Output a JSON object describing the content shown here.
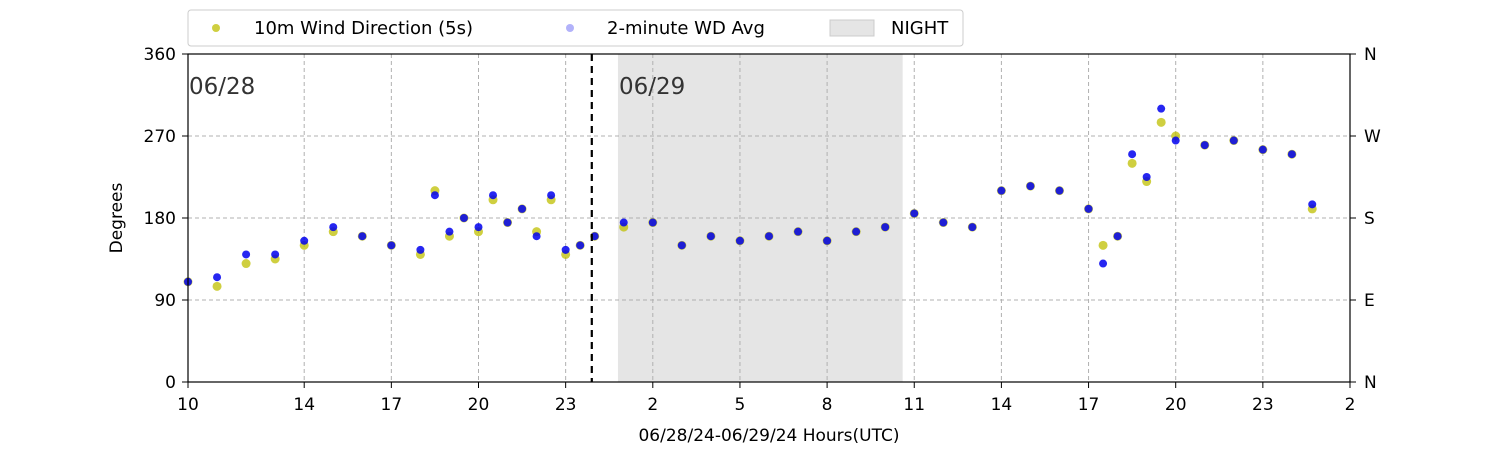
{
  "chart_data": {
    "type": "scatter",
    "xlabel": "06/28/24-06/29/24  Hours(UTC)",
    "ylabel": "Degrees",
    "ylim": [
      0,
      360
    ],
    "yticks": [
      0,
      90,
      180,
      270,
      360
    ],
    "right_ytick_labels": [
      "N",
      "E",
      "S",
      "W",
      "N"
    ],
    "x_start_hour": 10,
    "x_end_hour": 50,
    "xtick_hours": [
      10,
      14,
      17,
      20,
      23,
      26,
      29,
      32,
      35,
      38,
      41,
      44,
      47,
      50
    ],
    "xtick_labels": [
      "10",
      "14",
      "17",
      "20",
      "23",
      "2",
      "5",
      "8",
      "11",
      "14",
      "17",
      "20",
      "23",
      "2"
    ],
    "grid": true,
    "legend_position": "top-center-above",
    "day_labels": [
      {
        "text": "06/28",
        "hour": 10
      },
      {
        "text": "06/29",
        "hour": 24.8
      }
    ],
    "day_boundary_hour": 23.9,
    "night": {
      "label": "NIGHT",
      "start_hour": 24.8,
      "end_hour": 34.6
    },
    "series": [
      {
        "name": "10m Wind Direction (5s)",
        "color": "#bfbf00",
        "points": [
          [
            10,
            110
          ],
          [
            11,
            105
          ],
          [
            12,
            130
          ],
          [
            13,
            135
          ],
          [
            14,
            150
          ],
          [
            15,
            165
          ],
          [
            16,
            160
          ],
          [
            17,
            150
          ],
          [
            18,
            140
          ],
          [
            18.5,
            210
          ],
          [
            19,
            160
          ],
          [
            19.5,
            180
          ],
          [
            20,
            165
          ],
          [
            20.5,
            200
          ],
          [
            21,
            175
          ],
          [
            21.5,
            190
          ],
          [
            22,
            165
          ],
          [
            22.5,
            200
          ],
          [
            23,
            140
          ],
          [
            23.5,
            150
          ],
          [
            24,
            160
          ],
          [
            25,
            170
          ],
          [
            26,
            175
          ],
          [
            27,
            150
          ],
          [
            28,
            160
          ],
          [
            29,
            155
          ],
          [
            30,
            160
          ],
          [
            31,
            165
          ],
          [
            32,
            155
          ],
          [
            33,
            165
          ],
          [
            34,
            170
          ],
          [
            35,
            185
          ],
          [
            36,
            175
          ],
          [
            37,
            170
          ],
          [
            38,
            210
          ],
          [
            39,
            215
          ],
          [
            40,
            210
          ],
          [
            41,
            190
          ],
          [
            41.5,
            150
          ],
          [
            42,
            160
          ],
          [
            42.5,
            240
          ],
          [
            43,
            220
          ],
          [
            43.5,
            285
          ],
          [
            44,
            270
          ],
          [
            45,
            260
          ],
          [
            46,
            265
          ],
          [
            47,
            255
          ],
          [
            48,
            250
          ],
          [
            48.7,
            190
          ]
        ]
      },
      {
        "name": "2-minute WD Avg",
        "color": "#0000ee",
        "points": [
          [
            10,
            110
          ],
          [
            11,
            115
          ],
          [
            12,
            140
          ],
          [
            13,
            140
          ],
          [
            14,
            155
          ],
          [
            15,
            170
          ],
          [
            16,
            160
          ],
          [
            17,
            150
          ],
          [
            18,
            145
          ],
          [
            18.5,
            205
          ],
          [
            19,
            165
          ],
          [
            19.5,
            180
          ],
          [
            20,
            170
          ],
          [
            20.5,
            205
          ],
          [
            21,
            175
          ],
          [
            21.5,
            190
          ],
          [
            22,
            160
          ],
          [
            22.5,
            205
          ],
          [
            23,
            145
          ],
          [
            23.5,
            150
          ],
          [
            24,
            160
          ],
          [
            25,
            175
          ],
          [
            26,
            175
          ],
          [
            27,
            150
          ],
          [
            28,
            160
          ],
          [
            29,
            155
          ],
          [
            30,
            160
          ],
          [
            31,
            165
          ],
          [
            32,
            155
          ],
          [
            33,
            165
          ],
          [
            34,
            170
          ],
          [
            35,
            185
          ],
          [
            36,
            175
          ],
          [
            37,
            170
          ],
          [
            38,
            210
          ],
          [
            39,
            215
          ],
          [
            40,
            210
          ],
          [
            41,
            190
          ],
          [
            41.5,
            130
          ],
          [
            42,
            160
          ],
          [
            42.5,
            250
          ],
          [
            43,
            225
          ],
          [
            43.5,
            300
          ],
          [
            44,
            265
          ],
          [
            45,
            260
          ],
          [
            46,
            265
          ],
          [
            47,
            255
          ],
          [
            48,
            250
          ],
          [
            48.7,
            195
          ]
        ]
      }
    ]
  }
}
